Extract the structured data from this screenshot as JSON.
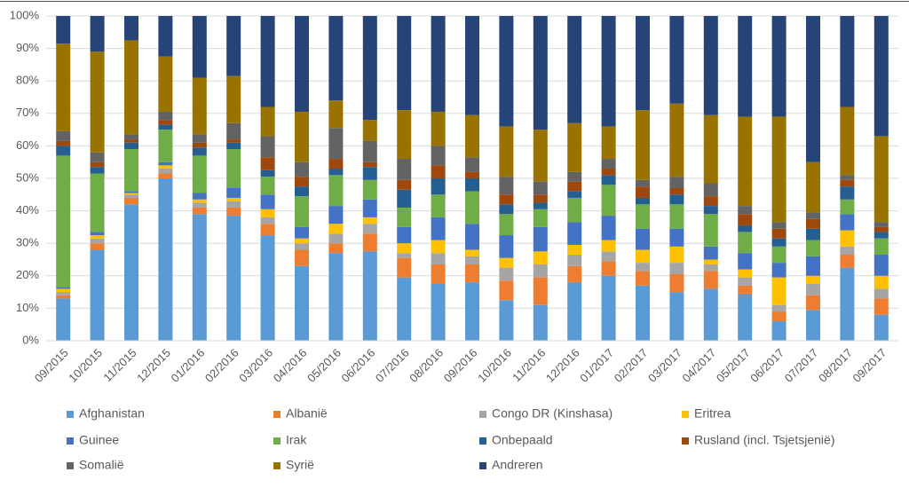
{
  "chart_data": {
    "type": "stacked_bar",
    "categories": [
      "09/2015",
      "10/2015",
      "11/2015",
      "12/2015",
      "01/2016",
      "02/2016",
      "03/2016",
      "04/2016",
      "05/2016",
      "06/2016",
      "07/2016",
      "08/2016",
      "09/2016",
      "10/2016",
      "11/2016",
      "12/2016",
      "01/2017",
      "02/2017",
      "03/2017",
      "04/2017",
      "05/2017",
      "06/2017",
      "07/2017",
      "08/2017",
      "09/2017"
    ],
    "series": [
      {
        "name": "Afghanistan",
        "color": "#5b9bd5",
        "values": [
          13,
          28,
          42,
          50,
          39,
          38.5,
          32.5,
          23,
          27,
          27.5,
          19.5,
          17.5,
          18,
          12.5,
          11,
          18,
          20,
          17,
          15,
          16,
          14.5,
          6,
          9.5,
          22.5,
          8
        ]
      },
      {
        "name": "Albanië",
        "color": "#ed7d31",
        "values": [
          1,
          2,
          2,
          1.5,
          2,
          2.5,
          3.5,
          5,
          3,
          5.5,
          6,
          6,
          5.5,
          6,
          8.5,
          5,
          4.5,
          4.5,
          5.5,
          5.5,
          2.5,
          3,
          4.5,
          4,
          5
        ]
      },
      {
        "name": "Congo DR (Kinshasa)",
        "color": "#a5a5a5",
        "values": [
          1,
          1.5,
          1,
          1.5,
          1.5,
          2,
          2,
          2,
          3,
          3,
          1.5,
          3.5,
          2.5,
          4,
          4,
          3.5,
          3,
          2.5,
          3.5,
          2,
          2.5,
          2,
          3.5,
          2.5,
          3
        ]
      },
      {
        "name": "Eritrea",
        "color": "#ffc000",
        "values": [
          1,
          1,
          0.5,
          1,
          1,
          1,
          2.5,
          1.5,
          3,
          2,
          3,
          4,
          2,
          3,
          4,
          3,
          3.5,
          4,
          5,
          1.5,
          2.5,
          8.5,
          2.5,
          5,
          4
        ]
      },
      {
        "name": "Guinee",
        "color": "#4472c4",
        "values": [
          0.5,
          1,
          0.5,
          1,
          2,
          3,
          4.5,
          3.5,
          5.5,
          5.5,
          5,
          7,
          8,
          7,
          7.5,
          7,
          7.5,
          6.5,
          5.5,
          4,
          5,
          4.5,
          6,
          5,
          6.5
        ]
      },
      {
        "name": "Irak",
        "color": "#70ad47",
        "values": [
          40.5,
          18,
          13,
          10,
          11.5,
          12,
          5.5,
          9.5,
          9.5,
          6,
          6,
          7,
          10,
          6.5,
          5.5,
          7.5,
          9.5,
          7.5,
          7.5,
          10,
          6.5,
          5,
          5,
          4.5,
          5
        ]
      },
      {
        "name": "Onbepaald",
        "color": "#255e91",
        "values": [
          3,
          2,
          2,
          1.5,
          2.5,
          2,
          2,
          3,
          2,
          4,
          5.5,
          5,
          4,
          3,
          2,
          2,
          3,
          2,
          3,
          2.5,
          2,
          2.5,
          3.5,
          4,
          2
        ]
      },
      {
        "name": "Rusland (incl. Tsjetsjenië)",
        "color": "#9e480e",
        "values": [
          1.5,
          1.5,
          1,
          1.5,
          1.5,
          1,
          4,
          3,
          3,
          1.5,
          3,
          4,
          2,
          3,
          2.5,
          3,
          2,
          3.5,
          2,
          3,
          3.5,
          3,
          3,
          2,
          1.5
        ]
      },
      {
        "name": "Somalië",
        "color": "#636363",
        "values": [
          3,
          3,
          1.5,
          2.5,
          2.5,
          5,
          6.5,
          4.5,
          9.5,
          6.5,
          6.5,
          6,
          4.5,
          5.5,
          4,
          3,
          3,
          2,
          3.5,
          4,
          2.5,
          2,
          2,
          1.5,
          1.5
        ]
      },
      {
        "name": "Syrië",
        "color": "#997300",
        "values": [
          27,
          31,
          29,
          17,
          17.5,
          14.5,
          9,
          15.5,
          8.5,
          6.5,
          15,
          10.5,
          13,
          15.5,
          16,
          15,
          10,
          21.5,
          22.5,
          21,
          27.5,
          32.5,
          15.5,
          21,
          26.5
        ]
      },
      {
        "name": "Andreren",
        "color": "#264478",
        "values": [
          8.5,
          11,
          7.5,
          12.5,
          19,
          18.5,
          28,
          29.5,
          26,
          32,
          29,
          29.5,
          30.5,
          34,
          35,
          33,
          34,
          29,
          27,
          30.5,
          31,
          31,
          45,
          28,
          37
        ]
      }
    ],
    "ylim": [
      0,
      100
    ],
    "yticks": [
      {
        "value": 0,
        "label": "0%"
      },
      {
        "value": 10,
        "label": "10%"
      },
      {
        "value": 20,
        "label": "20%"
      },
      {
        "value": 30,
        "label": "30%"
      },
      {
        "value": 40,
        "label": "40%"
      },
      {
        "value": 50,
        "label": "50%"
      },
      {
        "value": 60,
        "label": "60%"
      },
      {
        "value": 70,
        "label": "70%"
      },
      {
        "value": 80,
        "label": "80%"
      },
      {
        "value": 90,
        "label": "90%"
      },
      {
        "value": 100,
        "label": "100%"
      }
    ],
    "grid": true,
    "legend": "bottom"
  }
}
